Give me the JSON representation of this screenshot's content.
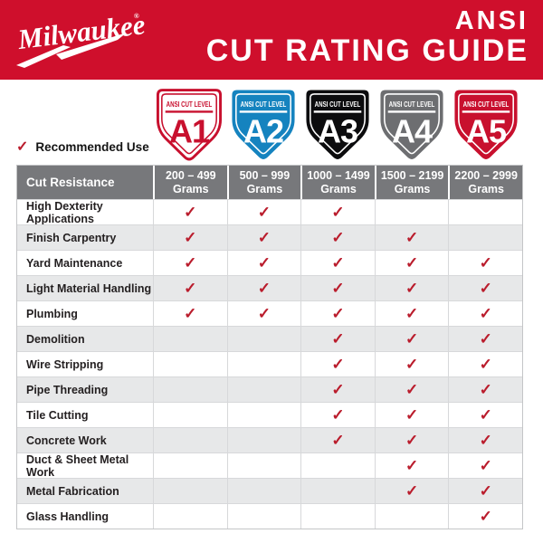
{
  "header": {
    "brand": "Milwaukee",
    "registered_mark": "®",
    "title_line1": "ANSI",
    "title_line2": "CUT RATING GUIDE"
  },
  "legend": {
    "check": "✓",
    "label": "Recommended Use"
  },
  "cut_levels": [
    {
      "banner": "ANSI CUT LEVEL",
      "level": "A1",
      "range": "200 – 499",
      "unit": "Grams",
      "fill": "#ffffff",
      "accent": "#c8102e",
      "border": "#c8102e"
    },
    {
      "banner": "ANSI CUT LEVEL",
      "level": "A2",
      "range": "500 – 999",
      "unit": "Grams",
      "fill": "#1583bf",
      "accent": "#ffffff",
      "border": "none"
    },
    {
      "banner": "ANSI CUT LEVEL",
      "level": "A3",
      "range": "1000 – 1499",
      "unit": "Grams",
      "fill": "#0c0c0e",
      "accent": "#ffffff",
      "border": "none"
    },
    {
      "banner": "ANSI CUT LEVEL",
      "level": "A4",
      "range": "1500 – 2199",
      "unit": "Grams",
      "fill": "#6d6e71",
      "accent": "#ffffff",
      "border": "none"
    },
    {
      "banner": "ANSI CUT LEVEL",
      "level": "A5",
      "range": "2200 – 2999",
      "unit": "Grams",
      "fill": "#c8102e",
      "accent": "#ffffff",
      "border": "none"
    }
  ],
  "table": {
    "corner_label": "Cut Resistance",
    "check_symbol": "✓",
    "rows": [
      {
        "label": "High Dexterity Applications",
        "checks": [
          true,
          true,
          true,
          false,
          false
        ]
      },
      {
        "label": "Finish Carpentry",
        "checks": [
          true,
          true,
          true,
          true,
          false
        ]
      },
      {
        "label": "Yard Maintenance",
        "checks": [
          true,
          true,
          true,
          true,
          true
        ]
      },
      {
        "label": "Light Material Handling",
        "checks": [
          true,
          true,
          true,
          true,
          true
        ]
      },
      {
        "label": "Plumbing",
        "checks": [
          true,
          true,
          true,
          true,
          true
        ]
      },
      {
        "label": "Demolition",
        "checks": [
          false,
          false,
          true,
          true,
          true
        ]
      },
      {
        "label": "Wire Stripping",
        "checks": [
          false,
          false,
          true,
          true,
          true
        ]
      },
      {
        "label": "Pipe Threading",
        "checks": [
          false,
          false,
          true,
          true,
          true
        ]
      },
      {
        "label": "Tile Cutting",
        "checks": [
          false,
          false,
          true,
          true,
          true
        ]
      },
      {
        "label": "Concrete Work",
        "checks": [
          false,
          false,
          true,
          true,
          true
        ]
      },
      {
        "label": "Duct & Sheet Metal Work",
        "checks": [
          false,
          false,
          false,
          true,
          true
        ]
      },
      {
        "label": "Metal Fabrication",
        "checks": [
          false,
          false,
          false,
          true,
          true
        ]
      },
      {
        "label": "Glass Handling",
        "checks": [
          false,
          false,
          false,
          false,
          true
        ]
      }
    ]
  },
  "colors": {
    "band_red": "#cf0f2c",
    "check_red": "#ba1c2c",
    "header_gray": "#77787b",
    "row_alt_gray": "#e7e8e9",
    "shield_blue": "#1583bf",
    "shield_black": "#0c0c0e",
    "shield_gray": "#6d6e71",
    "shield_red": "#c8102e"
  }
}
